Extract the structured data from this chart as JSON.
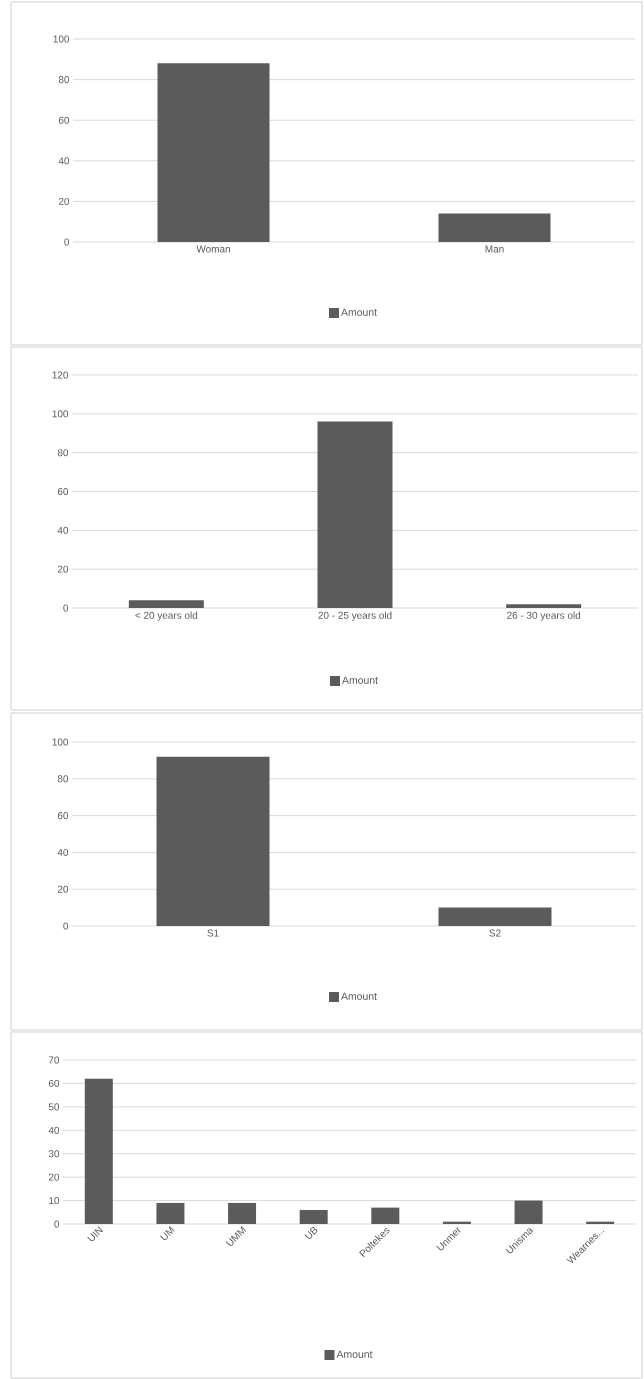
{
  "chart_data": [
    {
      "type": "bar",
      "categories": [
        "Woman",
        "Man"
      ],
      "series": [
        {
          "name": "Amount",
          "color": "#5b5b5b",
          "values": [
            88,
            14
          ]
        }
      ],
      "ylim": [
        0,
        100
      ],
      "yticks": [
        0,
        20,
        40,
        60,
        80,
        100
      ],
      "grid": "y",
      "legend": "bottom"
    },
    {
      "type": "bar",
      "categories": [
        "< 20 years old",
        "20 - 25 years old",
        "26 - 30 years old"
      ],
      "series": [
        {
          "name": "Amount",
          "color": "#5b5b5b",
          "values": [
            4,
            96,
            2
          ]
        }
      ],
      "ylim": [
        0,
        120
      ],
      "yticks": [
        0,
        20,
        40,
        60,
        80,
        100,
        120
      ],
      "grid": "y",
      "legend": "bottom"
    },
    {
      "type": "bar",
      "categories": [
        "S1",
        "S2"
      ],
      "series": [
        {
          "name": "Amount",
          "color": "#5b5b5b",
          "values": [
            92,
            10
          ]
        }
      ],
      "ylim": [
        0,
        100
      ],
      "yticks": [
        0,
        20,
        40,
        60,
        80,
        100
      ],
      "grid": "y",
      "legend": "bottom"
    },
    {
      "type": "bar",
      "categories": [
        "UIN",
        "UM",
        "UMM",
        "UB",
        "Poltekes",
        "Unmer",
        "Unisma",
        "Wearnes..."
      ],
      "series": [
        {
          "name": "Amount",
          "color": "#5b5b5b",
          "values": [
            62,
            9,
            9,
            6,
            7,
            1,
            10,
            1
          ]
        }
      ],
      "ylim": [
        0,
        70
      ],
      "yticks": [
        0,
        10,
        20,
        30,
        40,
        50,
        60,
        70
      ],
      "grid": "y",
      "legend": "bottom"
    }
  ]
}
